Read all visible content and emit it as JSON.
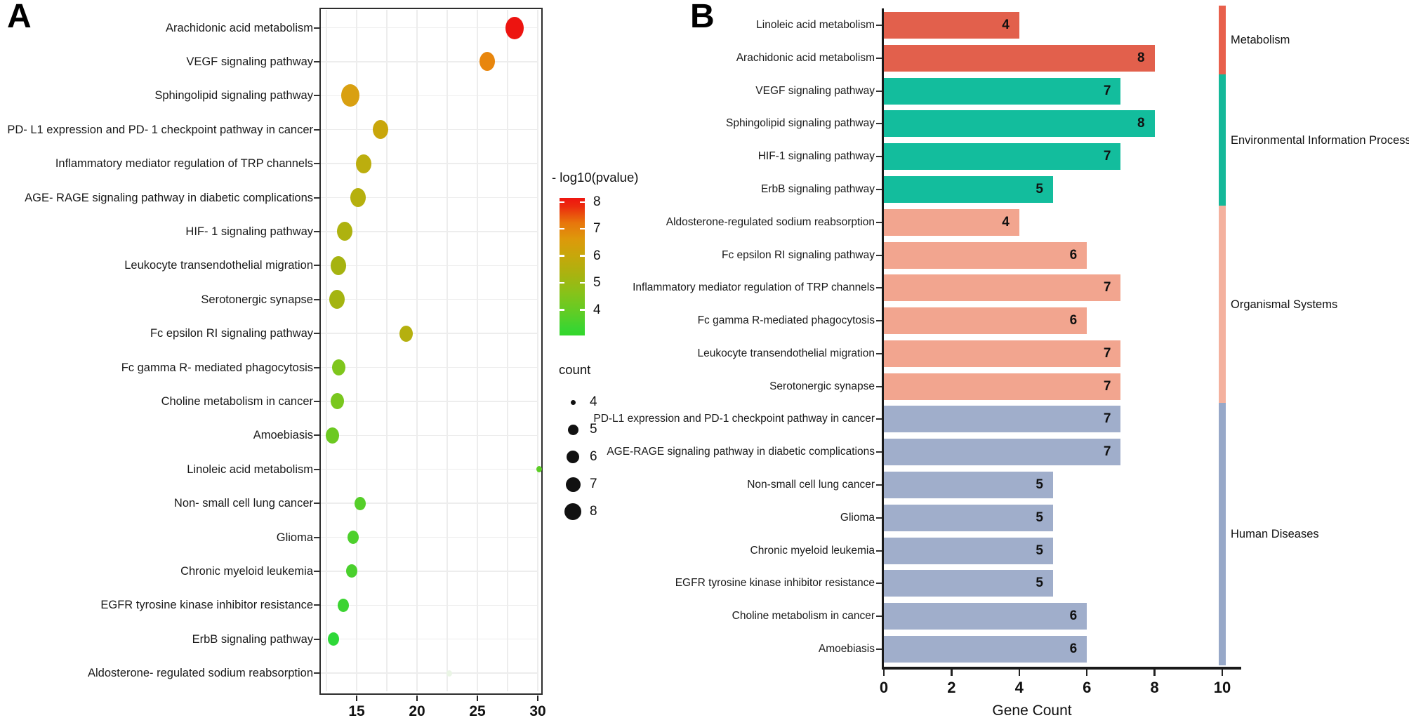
{
  "figure_labels": {
    "panel_a": "A",
    "panel_b": "B"
  },
  "chart_data": [
    {
      "id": "panel-A",
      "type": "scatter",
      "description": "KEGG pathway enrichment dot plot",
      "x_ticks": [
        15,
        20,
        25,
        30
      ],
      "x_domain": [
        11.9,
        30.4
      ],
      "grid": true,
      "color_legend": {
        "title": "- log10(pvalue)",
        "ticks": [
          8,
          7,
          6,
          5,
          4
        ],
        "gradient_top": "#ee1510",
        "gradient_mid": "#c7a70b",
        "gradient_bottom": "#33d72b"
      },
      "size_legend": {
        "title": "count",
        "sizes": [
          4,
          5,
          6,
          7,
          8
        ]
      },
      "points": [
        {
          "pathway": "Arachidonic acid metabolism",
          "x": 28.1,
          "count": 8,
          "neglog10_pvalue": 8.0,
          "color": "#ed1410"
        },
        {
          "pathway": "VEGF signaling pathway",
          "x": 25.8,
          "count": 7,
          "neglog10_pvalue": 7.0,
          "color": "#e8860d"
        },
        {
          "pathway": "Sphingolipid signaling pathway",
          "x": 14.5,
          "count": 8,
          "neglog10_pvalue": 6.6,
          "color": "#d9a011"
        },
        {
          "pathway": "PD- L1 expression and PD- 1 checkpoint pathway in cancer",
          "x": 17.0,
          "count": 7,
          "neglog10_pvalue": 6.0,
          "color": "#c9a60b"
        },
        {
          "pathway": "Inflammatory mediator regulation of TRP channels",
          "x": 15.6,
          "count": 7,
          "neglog10_pvalue": 5.8,
          "color": "#bcae0e"
        },
        {
          "pathway": "AGE- RAGE signaling pathway in diabetic complications",
          "x": 15.1,
          "count": 7,
          "neglog10_pvalue": 5.7,
          "color": "#b6b00e"
        },
        {
          "pathway": "HIF- 1 signaling pathway",
          "x": 14.0,
          "count": 7,
          "neglog10_pvalue": 5.5,
          "color": "#aeb20f"
        },
        {
          "pathway": "Leukocyte transendothelial migration",
          "x": 13.5,
          "count": 7,
          "neglog10_pvalue": 5.4,
          "color": "#a6b310"
        },
        {
          "pathway": "Serotonergic synapse",
          "x": 13.4,
          "count": 7,
          "neglog10_pvalue": 5.4,
          "color": "#a4b411"
        },
        {
          "pathway": "Fc epsilon RI signaling pathway",
          "x": 19.1,
          "count": 6,
          "neglog10_pvalue": 5.7,
          "color": "#b5b00e"
        },
        {
          "pathway": "Fc gamma R- mediated phagocytosis",
          "x": 13.5,
          "count": 6,
          "neglog10_pvalue": 4.8,
          "color": "#7fc61c"
        },
        {
          "pathway": "Choline metabolism in cancer",
          "x": 13.4,
          "count": 6,
          "neglog10_pvalue": 4.7,
          "color": "#79c71e"
        },
        {
          "pathway": "Amoebiasis",
          "x": 13.0,
          "count": 6,
          "neglog10_pvalue": 4.5,
          "color": "#6cc921"
        },
        {
          "pathway": "Linoleic acid metabolism",
          "x": 30.1,
          "count": 4,
          "neglog10_pvalue": 4.2,
          "color": "#5ccd26"
        },
        {
          "pathway": "Non- small cell lung cancer",
          "x": 15.3,
          "count": 5,
          "neglog10_pvalue": 4.3,
          "color": "#55ce29"
        },
        {
          "pathway": "Glioma",
          "x": 14.7,
          "count": 5,
          "neglog10_pvalue": 4.2,
          "color": "#4dd02c"
        },
        {
          "pathway": "Chronic myeloid leukemia",
          "x": 14.6,
          "count": 5,
          "neglog10_pvalue": 4.2,
          "color": "#4ad02d"
        },
        {
          "pathway": "EGFR tyrosine kinase inhibitor resistance",
          "x": 13.9,
          "count": 5,
          "neglog10_pvalue": 3.9,
          "color": "#3cd432"
        },
        {
          "pathway": "ErbB signaling pathway",
          "x": 13.1,
          "count": 5,
          "neglog10_pvalue": 3.7,
          "color": "#2ed838"
        },
        {
          "pathway": "Aldosterone- regulated sodium reabsorption",
          "x": 22.7,
          "count": 4,
          "neglog10_pvalue": 3.2,
          "color": "#eaf5e5"
        }
      ]
    },
    {
      "id": "panel-B",
      "type": "bar",
      "orientation": "horizontal",
      "xlabel": "Gene Count",
      "x_ticks": [
        0,
        2,
        4,
        6,
        8,
        10
      ],
      "xlim": [
        0,
        10.6
      ],
      "grid": false,
      "groups": [
        {
          "name": "Metabolism",
          "bar_color": "#e2604c",
          "strip_color": "#e8604c"
        },
        {
          "name": "Environmental Information Processing",
          "bar_color": "#13bd9d",
          "strip_color": "#14b899"
        },
        {
          "name": "Organismal Systems",
          "bar_color": "#f2a58f",
          "strip_color": "#f4b19e"
        },
        {
          "name": "Human Diseases",
          "bar_color": "#a0aecb",
          "strip_color": "#97a8c8"
        }
      ],
      "bars": [
        {
          "pathway": "Linoleic acid metabolism",
          "value": 4,
          "group": "Metabolism"
        },
        {
          "pathway": "Arachidonic acid metabolism",
          "value": 8,
          "group": "Metabolism"
        },
        {
          "pathway": "VEGF signaling pathway",
          "value": 7,
          "group": "Environmental Information Processing"
        },
        {
          "pathway": "Sphingolipid signaling pathway",
          "value": 8,
          "group": "Environmental Information Processing"
        },
        {
          "pathway": "HIF-1 signaling pathway",
          "value": 7,
          "group": "Environmental Information Processing"
        },
        {
          "pathway": "ErbB signaling pathway",
          "value": 5,
          "group": "Environmental Information Processing"
        },
        {
          "pathway": "Aldosterone-regulated sodium reabsorption",
          "value": 4,
          "group": "Organismal Systems"
        },
        {
          "pathway": "Fc epsilon RI signaling pathway",
          "value": 6,
          "group": "Organismal Systems"
        },
        {
          "pathway": "Inflammatory mediator regulation of TRP channels",
          "value": 7,
          "group": "Organismal Systems"
        },
        {
          "pathway": "Fc gamma R-mediated phagocytosis",
          "value": 6,
          "group": "Organismal Systems"
        },
        {
          "pathway": "Leukocyte transendothelial migration",
          "value": 7,
          "group": "Organismal Systems"
        },
        {
          "pathway": "Serotonergic synapse",
          "value": 7,
          "group": "Organismal Systems"
        },
        {
          "pathway": "PD-L1 expression and PD-1 checkpoint pathway in cancer",
          "value": 7,
          "group": "Human Diseases"
        },
        {
          "pathway": "AGE-RAGE signaling pathway in diabetic complications",
          "value": 7,
          "group": "Human Diseases"
        },
        {
          "pathway": "Non-small cell lung cancer",
          "value": 5,
          "group": "Human Diseases"
        },
        {
          "pathway": "Glioma",
          "value": 5,
          "group": "Human Diseases"
        },
        {
          "pathway": "Chronic myeloid leukemia",
          "value": 5,
          "group": "Human Diseases"
        },
        {
          "pathway": "EGFR tyrosine kinase inhibitor resistance",
          "value": 5,
          "group": "Human Diseases"
        },
        {
          "pathway": "Choline metabolism in cancer",
          "value": 6,
          "group": "Human Diseases"
        },
        {
          "pathway": "Amoebiasis",
          "value": 6,
          "group": "Human Diseases"
        }
      ]
    }
  ]
}
